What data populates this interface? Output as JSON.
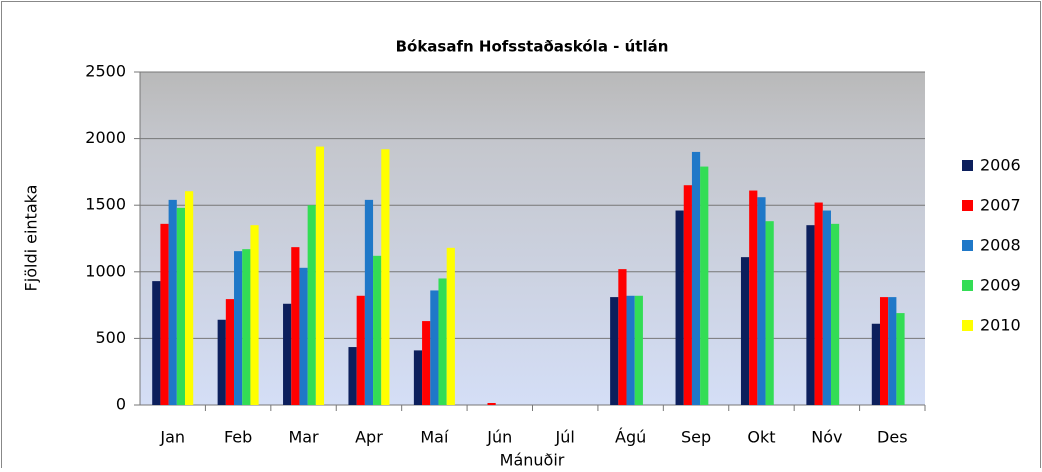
{
  "chart_data": {
    "type": "bar",
    "title": "Bókasafn Hofsstaðaskóla  - útlán",
    "x_label": "Mánuðir",
    "y_label": "Fjöldi eintaka",
    "categories": [
      "Jan",
      "Feb",
      "Mar",
      "Apr",
      "Maí",
      "Jún",
      "Júl",
      "Ágú",
      "Sep",
      "Okt",
      "Nóv",
      "Des"
    ],
    "series": [
      {
        "name": "2006",
        "color": "#0c1f5c",
        "values": [
          930,
          640,
          760,
          435,
          410,
          0,
          0,
          810,
          1460,
          1110,
          1350,
          610
        ]
      },
      {
        "name": "2007",
        "color": "#ff0000",
        "values": [
          1360,
          795,
          1185,
          820,
          630,
          15,
          0,
          1020,
          1650,
          1610,
          1520,
          810
        ]
      },
      {
        "name": "2008",
        "color": "#1f78c8",
        "values": [
          1540,
          1155,
          1030,
          1540,
          860,
          0,
          0,
          820,
          1900,
          1560,
          1460,
          810
        ]
      },
      {
        "name": "2009",
        "color": "#33dd55",
        "values": [
          1480,
          1170,
          1500,
          1120,
          950,
          0,
          0,
          820,
          1790,
          1380,
          1360,
          690
        ]
      },
      {
        "name": "2010",
        "color": "#ffff00",
        "values": [
          1605,
          1350,
          1940,
          1920,
          1180,
          0,
          0,
          null,
          null,
          null,
          null,
          null
        ]
      }
    ],
    "ylim": [
      0,
      2500
    ],
    "yticks": [
      0,
      500,
      1000,
      1500,
      2000,
      2500
    ],
    "grid": true,
    "legend": "right"
  }
}
